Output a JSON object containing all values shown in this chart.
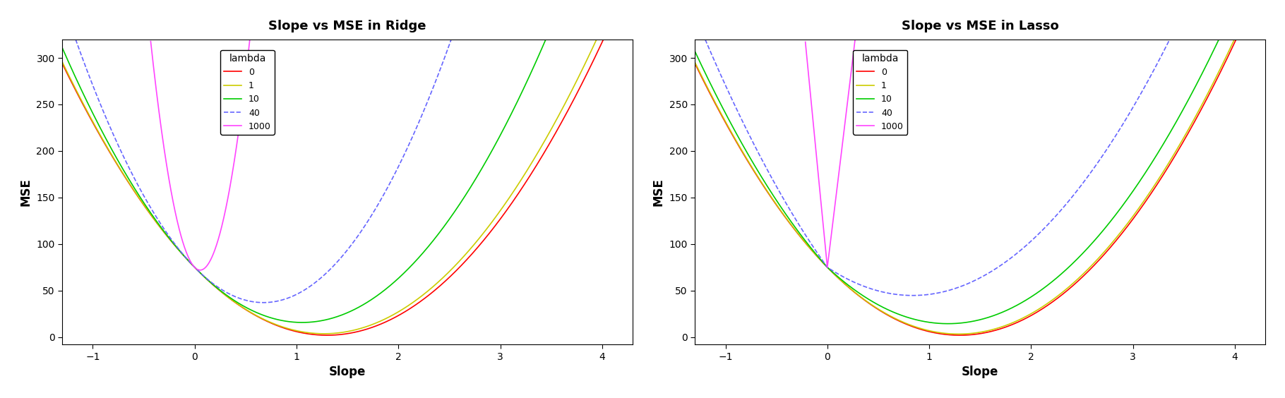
{
  "title_ridge": "Slope vs MSE in Ridge",
  "title_lasso": "Slope vs MSE in Lasso",
  "xlabel": "Slope",
  "ylabel": "MSE",
  "xlim": [
    -1.3,
    4.3
  ],
  "ylim": [
    -8,
    320
  ],
  "lambdas": [
    0,
    1,
    10,
    40,
    1000
  ],
  "colors": [
    "#FF0000",
    "#CCCC00",
    "#00CC00",
    "#6666FF",
    "#FF44FF"
  ],
  "linestyles": [
    "-",
    "-",
    "-",
    "--",
    "-"
  ],
  "beta_true": 1.3,
  "sigma2": 2.0,
  "A": 43.2,
  "yticks": [
    0,
    50,
    100,
    150,
    200,
    250,
    300
  ],
  "xticks": [
    -1,
    0,
    1,
    2,
    3,
    4
  ],
  "legend_labels": [
    "0",
    "1",
    "10",
    "40",
    "1000"
  ],
  "legend_title": "lambda",
  "figsize": [
    18.2,
    5.64
  ],
  "dpi": 100
}
